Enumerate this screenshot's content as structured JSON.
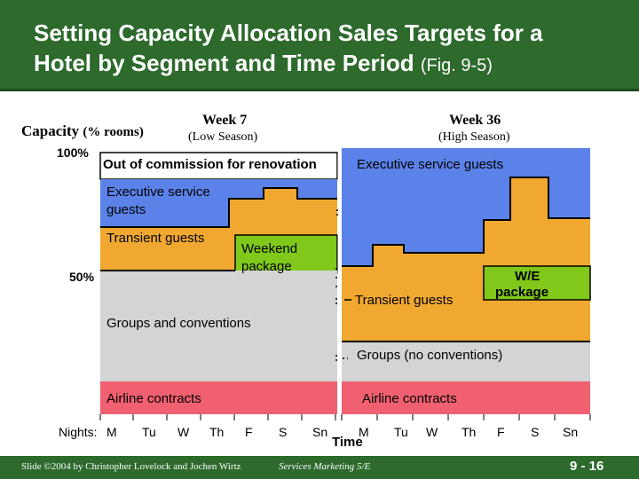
{
  "header": {
    "title_line1": "Setting Capacity Allocation Sales Targets for a",
    "title_line2_main": "Hotel by Segment and Time Period",
    "title_line2_fig": "(Fig. 9-5)"
  },
  "y_axis": {
    "title": "Capacity",
    "title_unit": "(% rooms)",
    "tick_100": "100%",
    "tick_50": "50%"
  },
  "week7": {
    "title": "Week 7",
    "subtitle": "(Low Season)"
  },
  "week36": {
    "title": "Week 36",
    "subtitle": "(High Season)"
  },
  "regions": {
    "out_of_commission": "Out of commission for renovation",
    "exec_service_left": "Executive service guests",
    "exec_service_right": "Executive service guests",
    "transient_left": "Transient guests",
    "weekend_package": "Weekend package",
    "we_package": "W/E package",
    "transient_right": "Transient guests",
    "groups_conventions": "Groups and conventions",
    "groups_no_conventions": "Groups (no conventions)",
    "airline_left": "Airline contracts",
    "airline_right": "Airline contracts"
  },
  "x_axis": {
    "prefix": "Nights:",
    "days_left": [
      "M",
      "Tu",
      "W",
      "Th",
      "F",
      "S",
      "Sn"
    ],
    "days_right": [
      "M",
      "Tu",
      "W",
      "Th",
      "F",
      "S",
      "Sn"
    ],
    "title": "Time"
  },
  "footer": {
    "copyright": "Slide ©2004 by Christopher Lovelock and Jochen Wirtz",
    "book": "Services Marketing 5/E",
    "page": "9 - 16"
  },
  "colors": {
    "header_bg": "#2d6a2c",
    "executive": "#5b82e8",
    "transient": "#f0a830",
    "weekend": "#80c81a",
    "groups": "#d4d4d4",
    "airline": "#f06070"
  }
}
